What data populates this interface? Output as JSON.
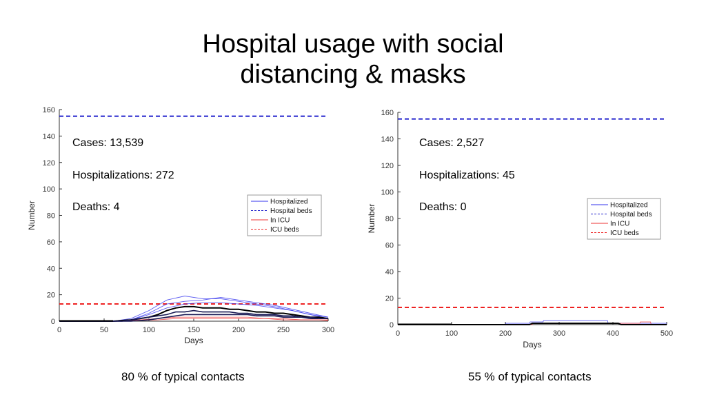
{
  "title": {
    "line1": "Hospital usage with social",
    "line2": "distancing & masks"
  },
  "captions": {
    "left": "80 % of typical contacts",
    "right": "55 % of typical contacts"
  },
  "colors": {
    "hospitalized": "#3333ee",
    "hospital_beds": "#2222cc",
    "in_icu": "#ee3333",
    "icu_beds": "#ee2222",
    "median": "#000000"
  },
  "chart_data": [
    {
      "type": "line",
      "xlabel": "Days",
      "ylabel": "Number",
      "xlim": [
        0,
        300
      ],
      "ylim": [
        0,
        160
      ],
      "xticks": [
        "0",
        "50",
        "100",
        "150",
        "200",
        "250",
        "300"
      ],
      "yticks": [
        "0",
        "20",
        "40",
        "60",
        "80",
        "100",
        "120",
        "140",
        "160"
      ],
      "stats": [
        "Cases: 13,539",
        "Hospitalizations: 272",
        "Deaths: 4"
      ],
      "legend": {
        "position": "upper-right",
        "entries": [
          "Hospitalized",
          "Hospital beds",
          "In ICU",
          "ICU beds"
        ]
      },
      "hospital_beds": 155,
      "icu_beds": 13,
      "series": [
        {
          "name": "Hospitalized",
          "x": [
            0,
            60,
            70,
            80,
            90,
            100,
            110,
            120,
            130,
            140,
            150,
            160,
            170,
            180,
            190,
            200,
            210,
            220,
            230,
            240,
            250,
            260,
            270,
            280,
            290,
            300
          ],
          "y": [
            0,
            0,
            0.5,
            1,
            2,
            3,
            5,
            8,
            10,
            11,
            11,
            10,
            10,
            10,
            9,
            9,
            8,
            7,
            7,
            6,
            6,
            5,
            4,
            3,
            3,
            2
          ]
        },
        {
          "name": "Hospitalized",
          "x": [
            0,
            70,
            80,
            90,
            100,
            110,
            120,
            130,
            140,
            150,
            160,
            170,
            180,
            190,
            200,
            210,
            220,
            230,
            240,
            250,
            260,
            270,
            280,
            290,
            300
          ],
          "y": [
            0,
            0,
            1,
            2,
            3,
            4,
            5,
            7,
            7,
            8,
            7,
            7,
            7,
            7,
            6,
            6,
            5,
            5,
            5,
            4,
            4,
            3,
            3,
            2,
            2
          ]
        },
        {
          "name": "Hospitalized",
          "x": [
            0,
            80,
            90,
            100,
            110,
            120,
            130,
            140,
            150,
            160,
            170,
            180,
            190,
            200,
            210,
            220,
            230,
            240,
            250,
            260,
            270,
            280,
            290,
            300
          ],
          "y": [
            0,
            0,
            0.5,
            1,
            2,
            3,
            4,
            5,
            5,
            5,
            5,
            5,
            5,
            5,
            5,
            4,
            4,
            4,
            3,
            3,
            3,
            2,
            2,
            2
          ]
        }
      ],
      "envelope_series": [
        {
          "name": "Hospitalized",
          "x": [
            60,
            80,
            100,
            120,
            140,
            160,
            180,
            200,
            220,
            240,
            260,
            280,
            300
          ],
          "y": [
            0,
            2,
            8,
            16,
            19,
            17,
            17,
            15,
            13,
            11,
            8,
            5,
            2
          ]
        },
        {
          "name": "Hospitalized",
          "x": [
            60,
            80,
            100,
            120,
            140,
            160,
            180,
            200,
            220,
            240,
            260,
            280,
            300
          ],
          "y": [
            0,
            1,
            6,
            13,
            15,
            16,
            18,
            16,
            14,
            12,
            9,
            6,
            3
          ]
        },
        {
          "name": "Hospitalized",
          "x": [
            60,
            80,
            100,
            120,
            140,
            160,
            180,
            200,
            220,
            240,
            260,
            280,
            300
          ],
          "y": [
            0,
            1,
            5,
            10,
            13,
            14,
            14,
            13,
            12,
            10,
            8,
            5,
            3
          ]
        },
        {
          "name": "In ICU",
          "x": [
            70,
            90,
            110,
            130,
            150,
            170,
            190,
            210,
            230,
            250,
            270,
            290,
            300
          ],
          "y": [
            0,
            1,
            2,
            3,
            3,
            3,
            3,
            3,
            2,
            2,
            1,
            1,
            1
          ]
        },
        {
          "name": "In ICU",
          "x": [
            70,
            90,
            110,
            130,
            150,
            170,
            190,
            210,
            230,
            250,
            270,
            290,
            300
          ],
          "y": [
            0,
            0.5,
            1,
            2,
            2,
            2,
            2,
            2,
            2,
            1,
            1,
            1,
            0.5
          ]
        }
      ]
    },
    {
      "type": "line",
      "xlabel": "Days",
      "ylabel": "Number",
      "xlim": [
        0,
        500
      ],
      "ylim": [
        0,
        160
      ],
      "xticks": [
        "0",
        "100",
        "200",
        "300",
        "400",
        "500"
      ],
      "yticks": [
        "0",
        "20",
        "40",
        "60",
        "80",
        "100",
        "120",
        "140",
        "160"
      ],
      "stats": [
        "Cases: 2,527",
        "Hospitalizations: 45",
        "Deaths: 0"
      ],
      "legend": {
        "position": "upper-right",
        "entries": [
          "Hospitalized",
          "Hospital beds",
          "In ICU",
          "ICU beds"
        ]
      },
      "hospital_beds": 155,
      "icu_beds": 13,
      "series": [
        {
          "name": "Hospitalized",
          "x": [
            0,
            200,
            245,
            250,
            255,
            350,
            355,
            410,
            415,
            500
          ],
          "y": [
            0,
            0,
            0,
            1,
            1,
            1,
            1,
            1,
            0,
            0
          ]
        }
      ],
      "envelope_series": [
        {
          "name": "Hospitalized",
          "x": [
            0,
            200,
            201,
            245,
            246,
            270,
            271,
            390,
            391,
            500
          ],
          "y": [
            0,
            0,
            1,
            1,
            2,
            2,
            3,
            3,
            1,
            1
          ]
        },
        {
          "name": "In ICU",
          "x": [
            0,
            250,
            251,
            450,
            451,
            470,
            471,
            500
          ],
          "y": [
            0,
            0,
            1,
            1,
            2,
            2,
            0,
            0
          ]
        }
      ]
    }
  ]
}
